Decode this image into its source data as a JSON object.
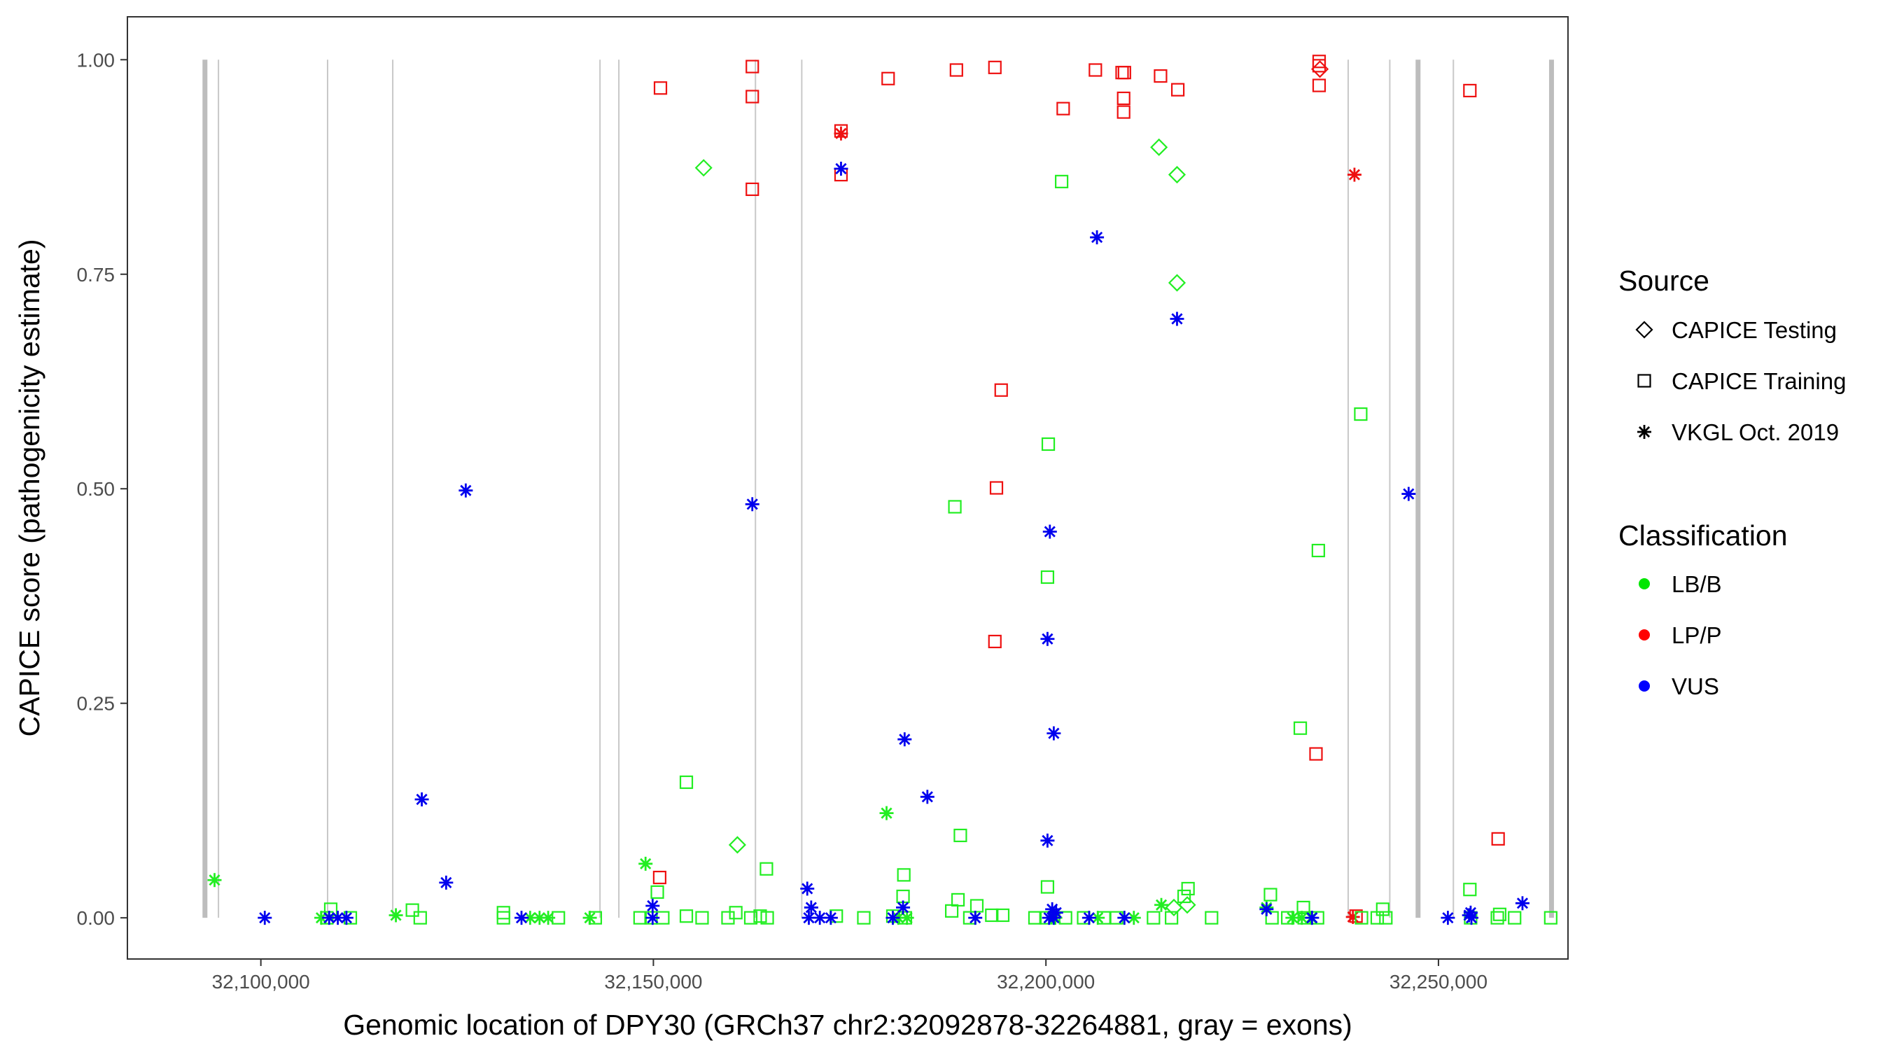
{
  "chart_data": {
    "type": "scatter",
    "title": "",
    "xlabel": "Genomic location of DPY30 (GRCh37 chr2:32092878-32264881, gray = exons)",
    "ylabel": "CAPICE score (pathogenicity estimate)",
    "xlim": [
      32083000,
      32266500
    ],
    "ylim": [
      -0.048,
      1.05
    ],
    "xticks": [
      32100000,
      32150000,
      32200000,
      32250000
    ],
    "xtick_labels": [
      "32,100,000",
      "32,150,000",
      "32,200,000",
      "32,250,000"
    ],
    "yticks": [
      0,
      0.25,
      0.5,
      0.75,
      1.0
    ],
    "ytick_labels": [
      "0.00",
      "0.25",
      "0.50",
      "0.75",
      "1.00"
    ],
    "grid": false,
    "exon_lines": [
      {
        "x": 32092878,
        "bold": true
      },
      {
        "x": 32094600,
        "bold": false
      },
      {
        "x": 32108500,
        "bold": false
      },
      {
        "x": 32116800,
        "bold": false
      },
      {
        "x": 32143200,
        "bold": false
      },
      {
        "x": 32145600,
        "bold": false
      },
      {
        "x": 32163000,
        "bold": false
      },
      {
        "x": 32168900,
        "bold": false
      },
      {
        "x": 32238500,
        "bold": false
      },
      {
        "x": 32243800,
        "bold": false
      },
      {
        "x": 32247400,
        "bold": true
      },
      {
        "x": 32251900,
        "bold": false
      },
      {
        "x": 32264400,
        "bold": true
      }
    ],
    "legend": {
      "placement": "right",
      "source_title": "Source",
      "source_entries": [
        {
          "label": "CAPICE Testing",
          "shape": "diamond"
        },
        {
          "label": "CAPICE Training",
          "shape": "square"
        },
        {
          "label": "VKGL Oct. 2019",
          "shape": "asterisk"
        }
      ],
      "class_title": "Classification",
      "class_entries": [
        {
          "label": "LB/B",
          "color": "#00e600"
        },
        {
          "label": "LP/P",
          "color": "#ff0000"
        },
        {
          "label": "VUS",
          "color": "#0000ff"
        }
      ]
    },
    "colors": {
      "LB/B": "#22ee22",
      "LP/P": "#ee1111",
      "VUS": "#0000ee",
      "exon": "#c8c8c8",
      "exon_bold": "#bdbdbd"
    },
    "series": [
      {
        "shape": "square",
        "class": "LP/P",
        "points": [
          [
            32150900,
            0.967
          ],
          [
            32162600,
            0.992
          ],
          [
            32162600,
            0.957
          ],
          [
            32162600,
            0.849
          ],
          [
            32173900,
            0.917
          ],
          [
            32173900,
            0.866
          ],
          [
            32179900,
            0.978
          ],
          [
            32188600,
            0.988
          ],
          [
            32193500,
            0.991
          ],
          [
            32202200,
            0.943
          ],
          [
            32206300,
            0.988
          ],
          [
            32209700,
            0.985
          ],
          [
            32210000,
            0.985
          ],
          [
            32209900,
            0.955
          ],
          [
            32209900,
            0.939
          ],
          [
            32214600,
            0.981
          ],
          [
            32216800,
            0.965
          ],
          [
            32234800,
            0.998
          ],
          [
            32234800,
            0.993
          ],
          [
            32234800,
            0.97
          ],
          [
            32194300,
            0.615
          ],
          [
            32193700,
            0.501
          ],
          [
            32193500,
            0.322
          ],
          [
            32234400,
            0.191
          ],
          [
            32257600,
            0.092
          ],
          [
            32254000,
            0.964
          ],
          [
            32150800,
            0.047
          ],
          [
            32239500,
            0.002
          ]
        ]
      },
      {
        "shape": "diamond",
        "class": "LP/P",
        "points": [
          [
            32234900,
            0.989
          ]
        ]
      },
      {
        "shape": "asterisk",
        "class": "LP/P",
        "points": [
          [
            32173900,
            0.914
          ],
          [
            32239300,
            0.866
          ],
          [
            32239100,
            0.001
          ]
        ]
      },
      {
        "shape": "diamond",
        "class": "LB/B",
        "points": [
          [
            32156400,
            0.874
          ],
          [
            32214400,
            0.898
          ],
          [
            32216700,
            0.866
          ],
          [
            32216700,
            0.74
          ],
          [
            32160700,
            0.085
          ],
          [
            32216300,
            0.012
          ],
          [
            32218000,
            0.015
          ]
        ]
      },
      {
        "shape": "square",
        "class": "LB/B",
        "points": [
          [
            32202000,
            0.858
          ],
          [
            32200300,
            0.552
          ],
          [
            32200200,
            0.397
          ],
          [
            32188400,
            0.479
          ],
          [
            32240100,
            0.587
          ],
          [
            32234700,
            0.428
          ],
          [
            32232400,
            0.221
          ],
          [
            32154200,
            0.158
          ],
          [
            32189100,
            0.096
          ],
          [
            32164400,
            0.057
          ],
          [
            32181900,
            0.05
          ],
          [
            32150500,
            0.03
          ],
          [
            32254000,
            0.033
          ],
          [
            32200200,
            0.036
          ],
          [
            32217600,
            0.025
          ],
          [
            32218100,
            0.034
          ],
          [
            32228600,
            0.027
          ],
          [
            32181800,
            0.025
          ],
          [
            32188800,
            0.021
          ],
          [
            32232800,
            0.012
          ],
          [
            32108900,
            0.01
          ],
          [
            32119300,
            0.009
          ],
          [
            32130900,
            0.006
          ],
          [
            32191200,
            0.014
          ],
          [
            32242900,
            0.01
          ],
          [
            32108400,
            0.0
          ],
          [
            32111400,
            0.0
          ],
          [
            32120300,
            0.0
          ],
          [
            32130900,
            0.0
          ],
          [
            32137900,
            0.0
          ],
          [
            32142600,
            0.0
          ],
          [
            32148300,
            0.0
          ],
          [
            32149700,
            0.0
          ],
          [
            32151200,
            0.0
          ],
          [
            32154200,
            0.002
          ],
          [
            32156200,
            0.0
          ],
          [
            32159500,
            0.0
          ],
          [
            32160500,
            0.006
          ],
          [
            32162400,
            0.0
          ],
          [
            32163600,
            0.002
          ],
          [
            32164500,
            0.0
          ],
          [
            32173300,
            0.002
          ],
          [
            32176800,
            0.0
          ],
          [
            32180500,
            0.002
          ],
          [
            32182100,
            0.0
          ],
          [
            32188000,
            0.008
          ],
          [
            32190300,
            0.0
          ],
          [
            32193100,
            0.003
          ],
          [
            32194500,
            0.003
          ],
          [
            32198600,
            0.0
          ],
          [
            32200000,
            0.0
          ],
          [
            32202500,
            0.0
          ],
          [
            32204800,
            0.0
          ],
          [
            32207400,
            0.0
          ],
          [
            32209000,
            0.0
          ],
          [
            32213700,
            0.0
          ],
          [
            32216000,
            0.0
          ],
          [
            32221100,
            0.0
          ],
          [
            32228800,
            0.0
          ],
          [
            32230800,
            0.0
          ],
          [
            32232900,
            0.0
          ],
          [
            32234600,
            0.0
          ],
          [
            32240200,
            0.0
          ],
          [
            32242200,
            0.0
          ],
          [
            32243300,
            0.0
          ],
          [
            32254100,
            0.0
          ],
          [
            32257500,
            0.0
          ],
          [
            32257800,
            0.004
          ],
          [
            32259700,
            0.0
          ],
          [
            32264300,
            0.0
          ]
        ]
      },
      {
        "shape": "asterisk",
        "class": "LB/B",
        "points": [
          [
            32094100,
            0.044
          ],
          [
            32149000,
            0.063
          ],
          [
            32179700,
            0.122
          ],
          [
            32117200,
            0.003
          ],
          [
            32107700,
            0.0
          ],
          [
            32134300,
            0.0
          ],
          [
            32135500,
            0.0
          ],
          [
            32136600,
            0.0
          ],
          [
            32141900,
            0.0
          ],
          [
            32181200,
            0.0
          ],
          [
            32182300,
            0.0
          ],
          [
            32201200,
            0.0
          ],
          [
            32206600,
            0.0
          ],
          [
            32211200,
            0.0
          ],
          [
            32214700,
            0.015
          ],
          [
            32228100,
            0.012
          ],
          [
            32231400,
            0.0
          ],
          [
            32232600,
            0.0
          ],
          [
            32233800,
            0.0
          ]
        ]
      },
      {
        "shape": "asterisk",
        "class": "VUS",
        "points": [
          [
            32173900,
            0.873
          ],
          [
            32206500,
            0.793
          ],
          [
            32216700,
            0.698
          ],
          [
            32126100,
            0.498
          ],
          [
            32246200,
            0.494
          ],
          [
            32162600,
            0.482
          ],
          [
            32200500,
            0.45
          ],
          [
            32200200,
            0.325
          ],
          [
            32201000,
            0.215
          ],
          [
            32182000,
            0.208
          ],
          [
            32184900,
            0.141
          ],
          [
            32120500,
            0.138
          ],
          [
            32200200,
            0.09
          ],
          [
            32123600,
            0.041
          ],
          [
            32169600,
            0.034
          ],
          [
            32260700,
            0.017
          ],
          [
            32149900,
            0.014
          ],
          [
            32170100,
            0.012
          ],
          [
            32181800,
            0.012
          ],
          [
            32200800,
            0.01
          ],
          [
            32201300,
            0.006
          ],
          [
            32228100,
            0.01
          ],
          [
            32254100,
            0.006
          ],
          [
            32253900,
            0.003
          ],
          [
            32100500,
            0.0
          ],
          [
            32108700,
            0.0
          ],
          [
            32109800,
            0.0
          ],
          [
            32110900,
            0.0
          ],
          [
            32133200,
            0.0
          ],
          [
            32149900,
            0.0
          ],
          [
            32169800,
            0.0
          ],
          [
            32171200,
            0.0
          ],
          [
            32172600,
            0.0
          ],
          [
            32180500,
            0.0
          ],
          [
            32191000,
            0.0
          ],
          [
            32200400,
            0.0
          ],
          [
            32201000,
            0.0
          ],
          [
            32205500,
            0.0
          ],
          [
            32210000,
            0.0
          ],
          [
            32233900,
            0.0
          ],
          [
            32251200,
            0.0
          ],
          [
            32254200,
            0.0
          ]
        ]
      }
    ]
  }
}
